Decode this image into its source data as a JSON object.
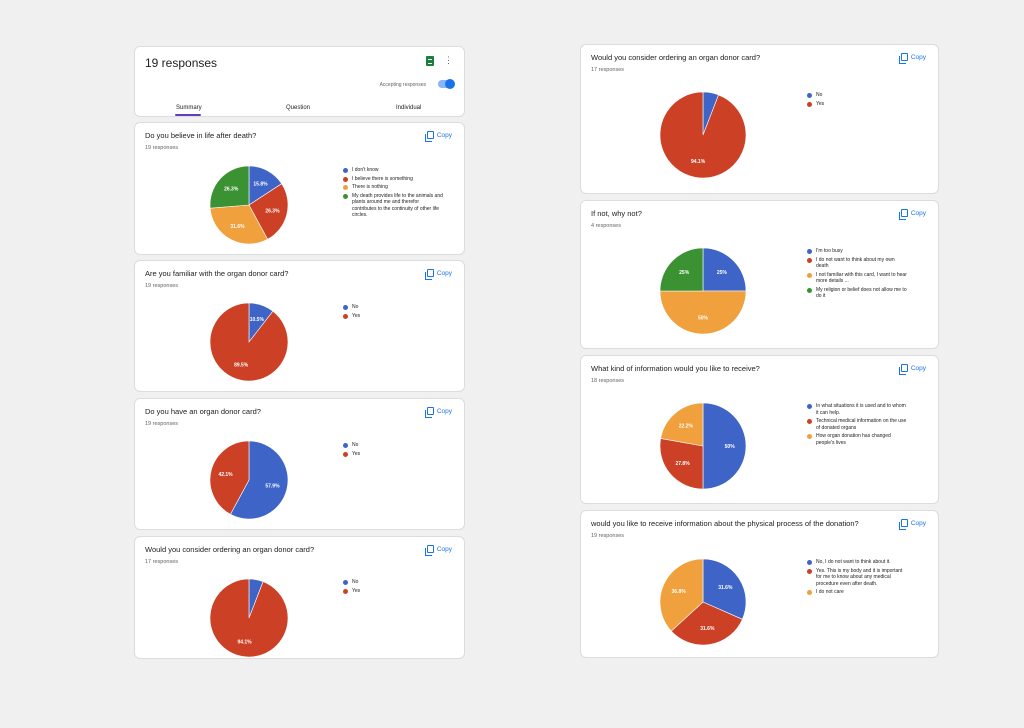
{
  "header": {
    "title": "19 responses",
    "accepting_label": "Accepting responses",
    "tabs": [
      "Summary",
      "Question",
      "Individual"
    ]
  },
  "copy_label": "Copy",
  "colors": {
    "blue": "#3e64c8",
    "red": "#cc4125",
    "orange": "#f0a03c",
    "green": "#3b9232",
    "accent": "#1a73e8"
  },
  "questions": [
    {
      "title": "Do you believe in life after death?",
      "responses": "19 responses",
      "legend": [
        "I don't know",
        "I believe there is something",
        "There is nothing",
        "My death provides life to the animals and plants around me and therefor contributes to the continuity of other life circles."
      ],
      "chart_data": {
        "type": "pie",
        "values": [
          15.8,
          26.3,
          31.6,
          26.3
        ],
        "labels": [
          "15.8%",
          "26.3%",
          "31.6%",
          "26.3%"
        ],
        "colors": [
          "blue",
          "red",
          "orange",
          "green"
        ]
      }
    },
    {
      "title": "Are you familiar with the organ donor card?",
      "responses": "19 responses",
      "legend": [
        "No",
        "Yes"
      ],
      "chart_data": {
        "type": "pie",
        "values": [
          10.5,
          89.5
        ],
        "labels": [
          "10.5%",
          "89.5%"
        ],
        "colors": [
          "blue",
          "red"
        ]
      }
    },
    {
      "title": "Do you have an organ donor card?",
      "responses": "19 responses",
      "legend": [
        "No",
        "Yes"
      ],
      "chart_data": {
        "type": "pie",
        "values": [
          57.9,
          42.1
        ],
        "labels": [
          "57.9%",
          "42.1%"
        ],
        "colors": [
          "blue",
          "red"
        ]
      }
    },
    {
      "title": "Would you consider ordering an organ donor card?",
      "responses": "17 responses",
      "legend": [
        "No",
        "Yes"
      ],
      "chart_data": {
        "type": "pie",
        "values": [
          5.9,
          94.1
        ],
        "labels": [
          "",
          "94.1%"
        ],
        "colors": [
          "blue",
          "red"
        ]
      }
    },
    {
      "title": "Would you consider ordering an organ donor card?",
      "responses": "17 responses",
      "legend": [
        "No",
        "Yes"
      ],
      "chart_data": {
        "type": "pie",
        "values": [
          5.9,
          94.1
        ],
        "labels": [
          "",
          "94.1%"
        ],
        "colors": [
          "blue",
          "red"
        ]
      }
    },
    {
      "title": "If not, why not?",
      "responses": "4 responses",
      "legend": [
        "I'm too busy",
        "I do not want to think about my own death",
        "I not familiar with this card, I want to hear more details ...",
        "My religion or belief does not allow me to do it"
      ],
      "chart_data": {
        "type": "pie",
        "values": [
          25,
          0,
          50,
          25
        ],
        "labels": [
          "25%",
          "",
          "50%",
          "25%"
        ],
        "colors": [
          "blue",
          "red",
          "orange",
          "green"
        ]
      }
    },
    {
      "title": "What kind of information would you like to receive?",
      "responses": "18 responses",
      "legend": [
        "In what situations it is used and to whom it can help.",
        "Technical medical information on the use of donated organs",
        "How organ donation has changed people's lives"
      ],
      "chart_data": {
        "type": "pie",
        "values": [
          50,
          27.8,
          22.2
        ],
        "labels": [
          "50%",
          "27.8%",
          "22.2%"
        ],
        "colors": [
          "blue",
          "red",
          "orange"
        ]
      }
    },
    {
      "title": "would you like to receive information about the physical process of the donation?",
      "responses": "19 responses",
      "legend": [
        "No, I do not want to think about it.",
        "Yes. This is my body and it is important for me to know about any medical procedure even after death.",
        "I do not care"
      ],
      "chart_data": {
        "type": "pie",
        "values": [
          31.6,
          31.6,
          36.8
        ],
        "labels": [
          "31.6%",
          "31.6%",
          "36.8%"
        ],
        "colors": [
          "blue",
          "red",
          "orange"
        ]
      }
    }
  ]
}
